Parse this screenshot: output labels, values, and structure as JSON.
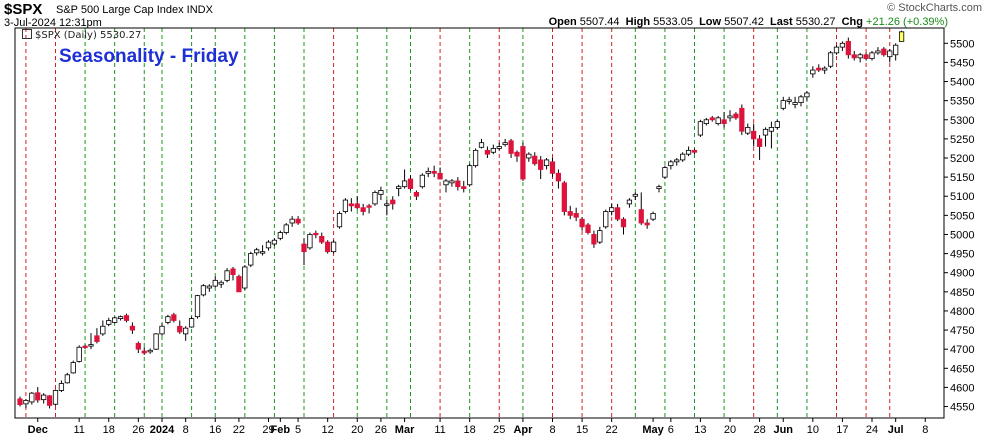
{
  "header": {
    "symbol": "$SPX",
    "name": "S&P 500 Large Cap Index INDX",
    "datetime": "3-Jul-2024 12:31pm",
    "open_label": "Open",
    "open": "5507.44",
    "high_label": "High",
    "high": "5533.05",
    "low_label": "Low",
    "low": "5507.42",
    "last_label": "Last",
    "last": "5530.27",
    "chg_label": "Chg",
    "chg": "+21.26 (+0.39%)",
    "watermark": "© StockCharts.com"
  },
  "legend": {
    "text": "$SPX (Daily) 5530.27"
  },
  "overlay_title": "Seasonality - Friday",
  "colors": {
    "up": "#ffffff",
    "down": "#dc143c",
    "outline": "#000000",
    "red_line": "#d42020",
    "green_line": "#1a9a1a",
    "last_bar": "#ffff66",
    "title": "#1f2fd6"
  },
  "chart_data": {
    "type": "candlestick",
    "ylim": [
      4520,
      5540
    ],
    "y_ticks": [
      4550,
      4600,
      4650,
      4700,
      4750,
      4800,
      4850,
      4900,
      4950,
      5000,
      5050,
      5100,
      5150,
      5200,
      5250,
      5300,
      5350,
      5400,
      5450,
      5500
    ],
    "x_ticks": [
      {
        "label": "Dec",
        "i": 3
      },
      {
        "label": "11",
        "i": 10
      },
      {
        "label": "18",
        "i": 15
      },
      {
        "label": "26",
        "i": 20
      },
      {
        "label": "2024",
        "i": 24
      },
      {
        "label": "8",
        "i": 28
      },
      {
        "label": "16",
        "i": 33
      },
      {
        "label": "22",
        "i": 37
      },
      {
        "label": "29",
        "i": 42
      },
      {
        "label": "Feb",
        "i": 44
      },
      {
        "label": "5",
        "i": 47
      },
      {
        "label": "12",
        "i": 52
      },
      {
        "label": "20",
        "i": 57
      },
      {
        "label": "26",
        "i": 61
      },
      {
        "label": "Mar",
        "i": 65
      },
      {
        "label": "11",
        "i": 71
      },
      {
        "label": "18",
        "i": 76
      },
      {
        "label": "25",
        "i": 81
      },
      {
        "label": "Apr",
        "i": 85
      },
      {
        "label": "8",
        "i": 90
      },
      {
        "label": "15",
        "i": 95
      },
      {
        "label": "22",
        "i": 100
      },
      {
        "label": "May",
        "i": 107
      },
      {
        "label": "6",
        "i": 110
      },
      {
        "label": "13",
        "i": 115
      },
      {
        "label": "20",
        "i": 120
      },
      {
        "label": "28",
        "i": 125
      },
      {
        "label": "Jun",
        "i": 129
      },
      {
        "label": "10",
        "i": 134
      },
      {
        "label": "17",
        "i": 139
      },
      {
        "label": "24",
        "i": 144
      },
      {
        "label": "Jul",
        "i": 148
      },
      {
        "label": "8",
        "i": 153
      }
    ],
    "friday_lines": [
      {
        "i": 1,
        "c": "red"
      },
      {
        "i": 6,
        "c": "red"
      },
      {
        "i": 11,
        "c": "green"
      },
      {
        "i": 16,
        "c": "green"
      },
      {
        "i": 21,
        "c": "green"
      },
      {
        "i": 24,
        "c": "green"
      },
      {
        "i": 29,
        "c": "green"
      },
      {
        "i": 33,
        "c": "green"
      },
      {
        "i": 38,
        "c": "green"
      },
      {
        "i": 43,
        "c": "green"
      },
      {
        "i": 48,
        "c": "green"
      },
      {
        "i": 53,
        "c": "red"
      },
      {
        "i": 57,
        "c": "green"
      },
      {
        "i": 62,
        "c": "green"
      },
      {
        "i": 66,
        "c": "green"
      },
      {
        "i": 71,
        "c": "red"
      },
      {
        "i": 76,
        "c": "green"
      },
      {
        "i": 81,
        "c": "red"
      },
      {
        "i": 85,
        "c": "green"
      },
      {
        "i": 90,
        "c": "red"
      },
      {
        "i": 95,
        "c": "red"
      },
      {
        "i": 100,
        "c": "red"
      },
      {
        "i": 104,
        "c": "green"
      },
      {
        "i": 109,
        "c": "green"
      },
      {
        "i": 114,
        "c": "green"
      },
      {
        "i": 119,
        "c": "green"
      },
      {
        "i": 124,
        "c": "red"
      },
      {
        "i": 128,
        "c": "green"
      },
      {
        "i": 133,
        "c": "green"
      },
      {
        "i": 138,
        "c": "red"
      },
      {
        "i": 143,
        "c": "red"
      },
      {
        "i": 147,
        "c": "red"
      }
    ],
    "candles": [
      {
        "o": 4570,
        "h": 4576,
        "l": 4550,
        "c": 4555
      },
      {
        "o": 4557,
        "h": 4570,
        "l": 4546,
        "c": 4566
      },
      {
        "o": 4562,
        "h": 4588,
        "l": 4555,
        "c": 4585
      },
      {
        "o": 4586,
        "h": 4601,
        "l": 4560,
        "c": 4567
      },
      {
        "o": 4568,
        "h": 4585,
        "l": 4558,
        "c": 4580
      },
      {
        "o": 4578,
        "h": 4580,
        "l": 4545,
        "c": 4553
      },
      {
        "o": 4556,
        "h": 4595,
        "l": 4552,
        "c": 4592
      },
      {
        "o": 4592,
        "h": 4618,
        "l": 4588,
        "c": 4610
      },
      {
        "o": 4612,
        "h": 4638,
        "l": 4610,
        "c": 4633
      },
      {
        "o": 4638,
        "h": 4670,
        "l": 4636,
        "c": 4665
      },
      {
        "o": 4668,
        "h": 4710,
        "l": 4665,
        "c": 4705
      },
      {
        "o": 4708,
        "h": 4712,
        "l": 4700,
        "c": 4704
      },
      {
        "o": 4708,
        "h": 4742,
        "l": 4700,
        "c": 4712
      },
      {
        "o": 4735,
        "h": 4755,
        "l": 4715,
        "c": 4720
      },
      {
        "o": 4740,
        "h": 4775,
        "l": 4735,
        "c": 4760
      },
      {
        "o": 4765,
        "h": 4782,
        "l": 4760,
        "c": 4775
      },
      {
        "o": 4770,
        "h": 4785,
        "l": 4768,
        "c": 4782
      },
      {
        "o": 4780,
        "h": 4788,
        "l": 4775,
        "c": 4785
      },
      {
        "o": 4788,
        "h": 4793,
        "l": 4770,
        "c": 4775
      },
      {
        "o": 4760,
        "h": 4770,
        "l": 4740,
        "c": 4750
      },
      {
        "o": 4715,
        "h": 4720,
        "l": 4690,
        "c": 4700
      },
      {
        "o": 4695,
        "h": 4705,
        "l": 4685,
        "c": 4690
      },
      {
        "o": 4693,
        "h": 4702,
        "l": 4688,
        "c": 4697
      },
      {
        "o": 4700,
        "h": 4742,
        "l": 4698,
        "c": 4740
      },
      {
        "o": 4740,
        "h": 4768,
        "l": 4735,
        "c": 4760
      },
      {
        "o": 4770,
        "h": 4790,
        "l": 4765,
        "c": 4785
      },
      {
        "o": 4790,
        "h": 4795,
        "l": 4770,
        "c": 4775
      },
      {
        "o": 4760,
        "h": 4775,
        "l": 4740,
        "c": 4745
      },
      {
        "o": 4740,
        "h": 4760,
        "l": 4722,
        "c": 4755
      },
      {
        "o": 4758,
        "h": 4785,
        "l": 4756,
        "c": 4780
      },
      {
        "o": 4785,
        "h": 4842,
        "l": 4780,
        "c": 4840
      },
      {
        "o": 4842,
        "h": 4870,
        "l": 4838,
        "c": 4866
      },
      {
        "o": 4860,
        "h": 4870,
        "l": 4850,
        "c": 4865
      },
      {
        "o": 4865,
        "h": 4890,
        "l": 4862,
        "c": 4880
      },
      {
        "o": 4870,
        "h": 4880,
        "l": 4860,
        "c": 4875
      },
      {
        "o": 4880,
        "h": 4912,
        "l": 4875,
        "c": 4905
      },
      {
        "o": 4910,
        "h": 4915,
        "l": 4880,
        "c": 4895
      },
      {
        "o": 4890,
        "h": 4895,
        "l": 4860,
        "c": 4850
      },
      {
        "o": 4860,
        "h": 4920,
        "l": 4855,
        "c": 4915
      },
      {
        "o": 4920,
        "h": 4955,
        "l": 4915,
        "c": 4950
      },
      {
        "o": 4952,
        "h": 4965,
        "l": 4945,
        "c": 4960
      },
      {
        "o": 4955,
        "h": 4972,
        "l": 4945,
        "c": 4955
      },
      {
        "o": 4965,
        "h": 4985,
        "l": 4958,
        "c": 4980
      },
      {
        "o": 4975,
        "h": 4990,
        "l": 4970,
        "c": 4985
      },
      {
        "o": 4990,
        "h": 5010,
        "l": 4985,
        "c": 5005
      },
      {
        "o": 5005,
        "h": 5030,
        "l": 5000,
        "c": 5025
      },
      {
        "o": 5030,
        "h": 5048,
        "l": 5020,
        "c": 5040
      },
      {
        "o": 5040,
        "h": 5048,
        "l": 5025,
        "c": 5030
      },
      {
        "o": 4975,
        "h": 4990,
        "l": 4920,
        "c": 4955
      },
      {
        "o": 4965,
        "h": 5005,
        "l": 4960,
        "c": 5000
      },
      {
        "o": 5003,
        "h": 5010,
        "l": 4990,
        "c": 5000
      },
      {
        "o": 4995,
        "h": 5005,
        "l": 4975,
        "c": 4980
      },
      {
        "o": 4980,
        "h": 4985,
        "l": 4950,
        "c": 4955
      },
      {
        "o": 4955,
        "h": 4985,
        "l": 4950,
        "c": 4980
      },
      {
        "o": 5020,
        "h": 5060,
        "l": 5015,
        "c": 5055
      },
      {
        "o": 5060,
        "h": 5095,
        "l": 5055,
        "c": 5090
      },
      {
        "o": 5080,
        "h": 5095,
        "l": 5060,
        "c": 5075
      },
      {
        "o": 5080,
        "h": 5100,
        "l": 5065,
        "c": 5070
      },
      {
        "o": 5070,
        "h": 5080,
        "l": 5050,
        "c": 5060
      },
      {
        "o": 5075,
        "h": 5080,
        "l": 5055,
        "c": 5072
      },
      {
        "o": 5080,
        "h": 5115,
        "l": 5075,
        "c": 5110
      },
      {
        "o": 5105,
        "h": 5125,
        "l": 5090,
        "c": 5115
      },
      {
        "o": 5080,
        "h": 5090,
        "l": 5050,
        "c": 5080
      },
      {
        "o": 5090,
        "h": 5100,
        "l": 5065,
        "c": 5080
      },
      {
        "o": 5120,
        "h": 5130,
        "l": 5100,
        "c": 5125
      },
      {
        "o": 5125,
        "h": 5170,
        "l": 5120,
        "c": 5140
      },
      {
        "o": 5145,
        "h": 5155,
        "l": 5115,
        "c": 5120
      },
      {
        "o": 5110,
        "h": 5115,
        "l": 5090,
        "c": 5100
      },
      {
        "o": 5125,
        "h": 5160,
        "l": 5120,
        "c": 5155
      },
      {
        "o": 5160,
        "h": 5175,
        "l": 5150,
        "c": 5165
      },
      {
        "o": 5165,
        "h": 5180,
        "l": 5150,
        "c": 5160
      },
      {
        "o": 5160,
        "h": 5175,
        "l": 5150,
        "c": 5145
      },
      {
        "o": 5130,
        "h": 5145,
        "l": 5110,
        "c": 5140
      },
      {
        "o": 5135,
        "h": 5145,
        "l": 5125,
        "c": 5140
      },
      {
        "o": 5140,
        "h": 5150,
        "l": 5115,
        "c": 5125
      },
      {
        "o": 5125,
        "h": 5140,
        "l": 5110,
        "c": 5120
      },
      {
        "o": 5130,
        "h": 5185,
        "l": 5125,
        "c": 5180
      },
      {
        "o": 5180,
        "h": 5225,
        "l": 5175,
        "c": 5220
      },
      {
        "o": 5228,
        "h": 5250,
        "l": 5225,
        "c": 5240
      },
      {
        "o": 5220,
        "h": 5230,
        "l": 5200,
        "c": 5210
      },
      {
        "o": 5215,
        "h": 5235,
        "l": 5210,
        "c": 5225
      },
      {
        "o": 5225,
        "h": 5240,
        "l": 5220,
        "c": 5230
      },
      {
        "o": 5235,
        "h": 5250,
        "l": 5230,
        "c": 5240
      },
      {
        "o": 5245,
        "h": 5250,
        "l": 5200,
        "c": 5212
      },
      {
        "o": 5215,
        "h": 5220,
        "l": 5190,
        "c": 5205
      },
      {
        "o": 5230,
        "h": 5240,
        "l": 5140,
        "c": 5145
      },
      {
        "o": 5200,
        "h": 5215,
        "l": 5190,
        "c": 5210
      },
      {
        "o": 5205,
        "h": 5215,
        "l": 5180,
        "c": 5185
      },
      {
        "o": 5195,
        "h": 5205,
        "l": 5145,
        "c": 5170
      },
      {
        "o": 5180,
        "h": 5200,
        "l": 5170,
        "c": 5195
      },
      {
        "o": 5190,
        "h": 5200,
        "l": 5150,
        "c": 5160
      },
      {
        "o": 5160,
        "h": 5170,
        "l": 5120,
        "c": 5140
      },
      {
        "o": 5135,
        "h": 5140,
        "l": 5050,
        "c": 5060
      },
      {
        "o": 5060,
        "h": 5075,
        "l": 5040,
        "c": 5050
      },
      {
        "o": 5055,
        "h": 5070,
        "l": 5035,
        "c": 5045
      },
      {
        "o": 5040,
        "h": 5045,
        "l": 5010,
        "c": 5020
      },
      {
        "o": 5025,
        "h": 5030,
        "l": 5000,
        "c": 5005
      },
      {
        "o": 5000,
        "h": 5010,
        "l": 4965,
        "c": 4975
      },
      {
        "o": 4980,
        "h": 5020,
        "l": 4975,
        "c": 5010
      },
      {
        "o": 5020,
        "h": 5065,
        "l": 5015,
        "c": 5060
      },
      {
        "o": 5060,
        "h": 5080,
        "l": 5050,
        "c": 5070
      },
      {
        "o": 5070,
        "h": 5080,
        "l": 5035,
        "c": 5040
      },
      {
        "o": 5040,
        "h": 5045,
        "l": 5000,
        "c": 5020
      },
      {
        "o": 5080,
        "h": 5095,
        "l": 5070,
        "c": 5090
      },
      {
        "o": 5100,
        "h": 5110,
        "l": 5090,
        "c": 5105
      },
      {
        "o": 5065,
        "h": 5110,
        "l": 5025,
        "c": 5030
      },
      {
        "o": 5030,
        "h": 5040,
        "l": 5015,
        "c": 5025
      },
      {
        "o": 5040,
        "h": 5060,
        "l": 5035,
        "c": 5055
      },
      {
        "o": 5120,
        "h": 5130,
        "l": 5110,
        "c": 5125
      },
      {
        "o": 5150,
        "h": 5180,
        "l": 5145,
        "c": 5175
      },
      {
        "o": 5180,
        "h": 5195,
        "l": 5170,
        "c": 5190
      },
      {
        "o": 5190,
        "h": 5200,
        "l": 5180,
        "c": 5195
      },
      {
        "o": 5195,
        "h": 5215,
        "l": 5190,
        "c": 5210
      },
      {
        "o": 5210,
        "h": 5230,
        "l": 5205,
        "c": 5220
      },
      {
        "o": 5220,
        "h": 5225,
        "l": 5210,
        "c": 5215
      },
      {
        "o": 5260,
        "h": 5300,
        "l": 5255,
        "c": 5295
      },
      {
        "o": 5290,
        "h": 5305,
        "l": 5285,
        "c": 5300
      },
      {
        "o": 5305,
        "h": 5310,
        "l": 5295,
        "c": 5300
      },
      {
        "o": 5290,
        "h": 5310,
        "l": 5285,
        "c": 5305
      },
      {
        "o": 5300,
        "h": 5320,
        "l": 5280,
        "c": 5290
      },
      {
        "o": 5305,
        "h": 5325,
        "l": 5295,
        "c": 5310
      },
      {
        "o": 5315,
        "h": 5320,
        "l": 5300,
        "c": 5305
      },
      {
        "o": 5330,
        "h": 5340,
        "l": 5260,
        "c": 5270
      },
      {
        "o": 5265,
        "h": 5290,
        "l": 5260,
        "c": 5280
      },
      {
        "o": 5270,
        "h": 5290,
        "l": 5230,
        "c": 5250
      },
      {
        "o": 5250,
        "h": 5260,
        "l": 5195,
        "c": 5230
      },
      {
        "o": 5260,
        "h": 5280,
        "l": 5230,
        "c": 5275
      },
      {
        "o": 5270,
        "h": 5295,
        "l": 5225,
        "c": 5280
      },
      {
        "o": 5280,
        "h": 5300,
        "l": 5275,
        "c": 5295
      },
      {
        "o": 5330,
        "h": 5360,
        "l": 5325,
        "c": 5350
      },
      {
        "o": 5350,
        "h": 5360,
        "l": 5340,
        "c": 5352
      },
      {
        "o": 5340,
        "h": 5360,
        "l": 5330,
        "c": 5345
      },
      {
        "o": 5345,
        "h": 5365,
        "l": 5335,
        "c": 5360
      },
      {
        "o": 5360,
        "h": 5375,
        "l": 5350,
        "c": 5370
      },
      {
        "o": 5420,
        "h": 5440,
        "l": 5410,
        "c": 5430
      },
      {
        "o": 5435,
        "h": 5445,
        "l": 5425,
        "c": 5430
      },
      {
        "o": 5430,
        "h": 5440,
        "l": 5420,
        "c": 5435
      },
      {
        "o": 5440,
        "h": 5480,
        "l": 5435,
        "c": 5475
      },
      {
        "o": 5475,
        "h": 5495,
        "l": 5470,
        "c": 5490
      },
      {
        "o": 5490,
        "h": 5505,
        "l": 5480,
        "c": 5500
      },
      {
        "o": 5505,
        "h": 5515,
        "l": 5460,
        "c": 5470
      },
      {
        "o": 5470,
        "h": 5480,
        "l": 5455,
        "c": 5462
      },
      {
        "o": 5462,
        "h": 5475,
        "l": 5450,
        "c": 5470
      },
      {
        "o": 5470,
        "h": 5475,
        "l": 5455,
        "c": 5460
      },
      {
        "o": 5460,
        "h": 5480,
        "l": 5455,
        "c": 5475
      },
      {
        "o": 5475,
        "h": 5490,
        "l": 5470,
        "c": 5480
      },
      {
        "o": 5485,
        "h": 5490,
        "l": 5465,
        "c": 5470
      },
      {
        "o": 5465,
        "h": 5485,
        "l": 5450,
        "c": 5480
      },
      {
        "o": 5470,
        "h": 5500,
        "l": 5455,
        "c": 5495
      },
      {
        "o": 5505,
        "h": 5533,
        "l": 5505,
        "c": 5530
      }
    ]
  }
}
